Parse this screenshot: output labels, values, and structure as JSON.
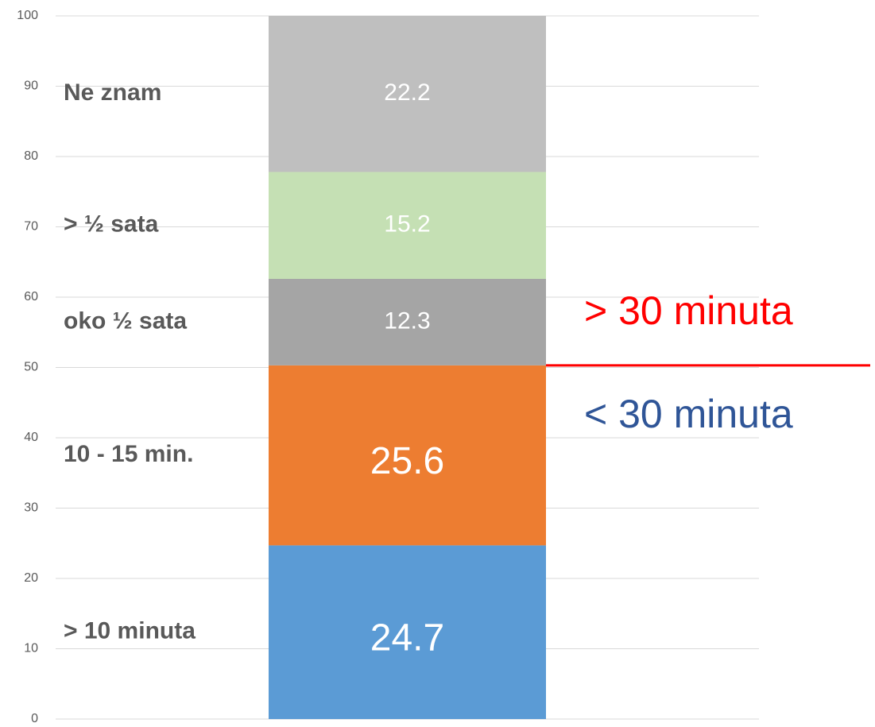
{
  "chart_data": {
    "type": "stacked_bar",
    "series": [
      {
        "name": "> 10 minuta",
        "color": "#5b9bd5",
        "values": [
          24.7
        ]
      },
      {
        "name": "10 - 15 min.",
        "color": "#ed7d31",
        "values": [
          25.6
        ]
      },
      {
        "name": "oko ½ sata",
        "color": "#a5a5a5",
        "values": [
          12.3
        ]
      },
      {
        "name": ">  ½ sata",
        "color": "#c5e0b4",
        "values": [
          15.2
        ]
      },
      {
        "name": "Ne znam",
        "color": "#bfbfbf",
        "values": [
          22.2
        ]
      }
    ],
    "ylim": [
      0,
      100
    ],
    "yticks": [
      0,
      10,
      20,
      30,
      40,
      50,
      60,
      70,
      80,
      90,
      100
    ],
    "grid": true,
    "annotations": [
      {
        "text": "> 30 minuta",
        "color": "#ff0000"
      },
      {
        "text": "< 30 minuta",
        "color": "#2f5597"
      }
    ]
  }
}
